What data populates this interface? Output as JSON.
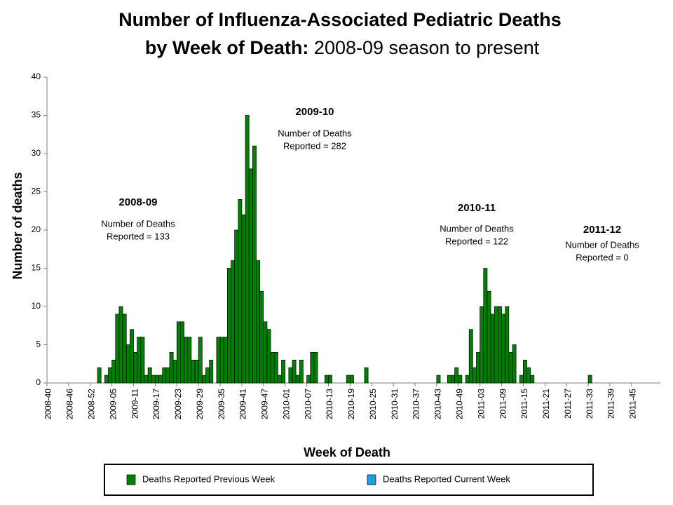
{
  "chart_data": {
    "type": "bar",
    "title": "Number of Influenza-Associated Pediatric Deaths",
    "subtitle_bold": "by Week of Death:",
    "subtitle": "2008-09 season to present",
    "x_label": "Week of Death",
    "y_label": "Number of deaths",
    "ylim": [
      0,
      40
    ],
    "yticks": [
      0,
      5,
      10,
      15,
      20,
      25,
      30,
      35,
      40
    ],
    "categories": [
      "2008-40",
      null,
      null,
      null,
      null,
      null,
      "2008-46",
      null,
      null,
      null,
      null,
      null,
      "2008-52",
      null,
      null,
      null,
      null,
      null,
      "2009-05",
      null,
      null,
      null,
      null,
      null,
      "2009-11",
      null,
      null,
      null,
      null,
      null,
      "2009-17",
      null,
      null,
      null,
      null,
      null,
      "2009-23",
      null,
      null,
      null,
      null,
      null,
      "2009-29",
      null,
      null,
      null,
      null,
      null,
      "2009-35",
      null,
      null,
      null,
      null,
      null,
      "2009-41",
      null,
      null,
      null,
      null,
      null,
      "2009-47",
      null,
      null,
      null,
      null,
      null,
      "2010-01",
      null,
      null,
      null,
      null,
      null,
      "2010-07",
      null,
      null,
      null,
      null,
      null,
      "2010-13",
      null,
      null,
      null,
      null,
      null,
      "2010-19",
      null,
      null,
      null,
      null,
      null,
      "2010-25",
      null,
      null,
      null,
      null,
      null,
      "2010-31",
      null,
      null,
      null,
      null,
      null,
      "2010-37",
      null,
      null,
      null,
      null,
      null,
      "2010-43",
      null,
      null,
      null,
      null,
      null,
      "2010-49",
      null,
      null,
      null,
      null,
      null,
      "2011-03",
      null,
      null,
      null,
      null,
      null,
      "2011-09",
      null,
      null,
      null,
      null,
      null,
      "2011-15",
      null,
      null,
      null,
      null,
      null,
      "2011-21",
      null,
      null,
      null,
      null,
      null,
      "2011-27",
      null,
      null,
      null,
      null,
      null,
      "2011-33",
      null,
      null,
      null,
      null,
      null,
      "2011-39",
      null,
      null,
      null,
      null,
      null,
      "2011-45",
      null,
      null,
      null,
      null,
      null,
      null,
      null
    ],
    "series": [
      {
        "name": "Deaths Reported Previous Week",
        "color": "#008000",
        "values": [
          0,
          0,
          0,
          0,
          0,
          0,
          0,
          0,
          0,
          0,
          0,
          0,
          0,
          0,
          2,
          0,
          1,
          2,
          3,
          9,
          10,
          9,
          5,
          7,
          4,
          6,
          6,
          1,
          2,
          1,
          1,
          1,
          2,
          2,
          4,
          3,
          8,
          8,
          6,
          6,
          3,
          3,
          6,
          1,
          2,
          3,
          0,
          6,
          6,
          6,
          15,
          16,
          20,
          24,
          22,
          35,
          28,
          31,
          16,
          12,
          8,
          7,
          4,
          4,
          1,
          3,
          0,
          2,
          3,
          1,
          3,
          0,
          1,
          4,
          4,
          0,
          0,
          1,
          1,
          0,
          0,
          0,
          0,
          1,
          1,
          0,
          0,
          0,
          2,
          0,
          0,
          0,
          0,
          0,
          0,
          0,
          0,
          0,
          0,
          0,
          0,
          0,
          0,
          0,
          0,
          0,
          0,
          0,
          1,
          0,
          0,
          1,
          1,
          2,
          1,
          0,
          1,
          7,
          2,
          4,
          10,
          15,
          12,
          9,
          10,
          10,
          9,
          10,
          4,
          5,
          0,
          1,
          3,
          2,
          1,
          0,
          0,
          0,
          0,
          0,
          0,
          0,
          0,
          0,
          0,
          0,
          0,
          0,
          0,
          0,
          1,
          0,
          0,
          0,
          0,
          0,
          0,
          0,
          0,
          0,
          0,
          0,
          0,
          0,
          0,
          0,
          0,
          0,
          0,
          0
        ]
      }
    ],
    "legend": [
      {
        "name": "Deaths Reported Previous Week",
        "color": "#008000"
      },
      {
        "name": "Deaths Reported Current Week",
        "color": "#1ba1e2"
      }
    ],
    "annotations": [
      {
        "season": "2008-09",
        "text": [
          "Number of Deaths",
          "Reported = 133"
        ]
      },
      {
        "season": "2009-10",
        "text": [
          "Number of Deaths",
          "Reported = 282"
        ]
      },
      {
        "season": "2010-11",
        "text": [
          "Number of Deaths",
          "Reported = 122"
        ]
      },
      {
        "season": "2011-12",
        "text": [
          "Number of Deaths",
          "Reported = 0"
        ]
      }
    ]
  }
}
